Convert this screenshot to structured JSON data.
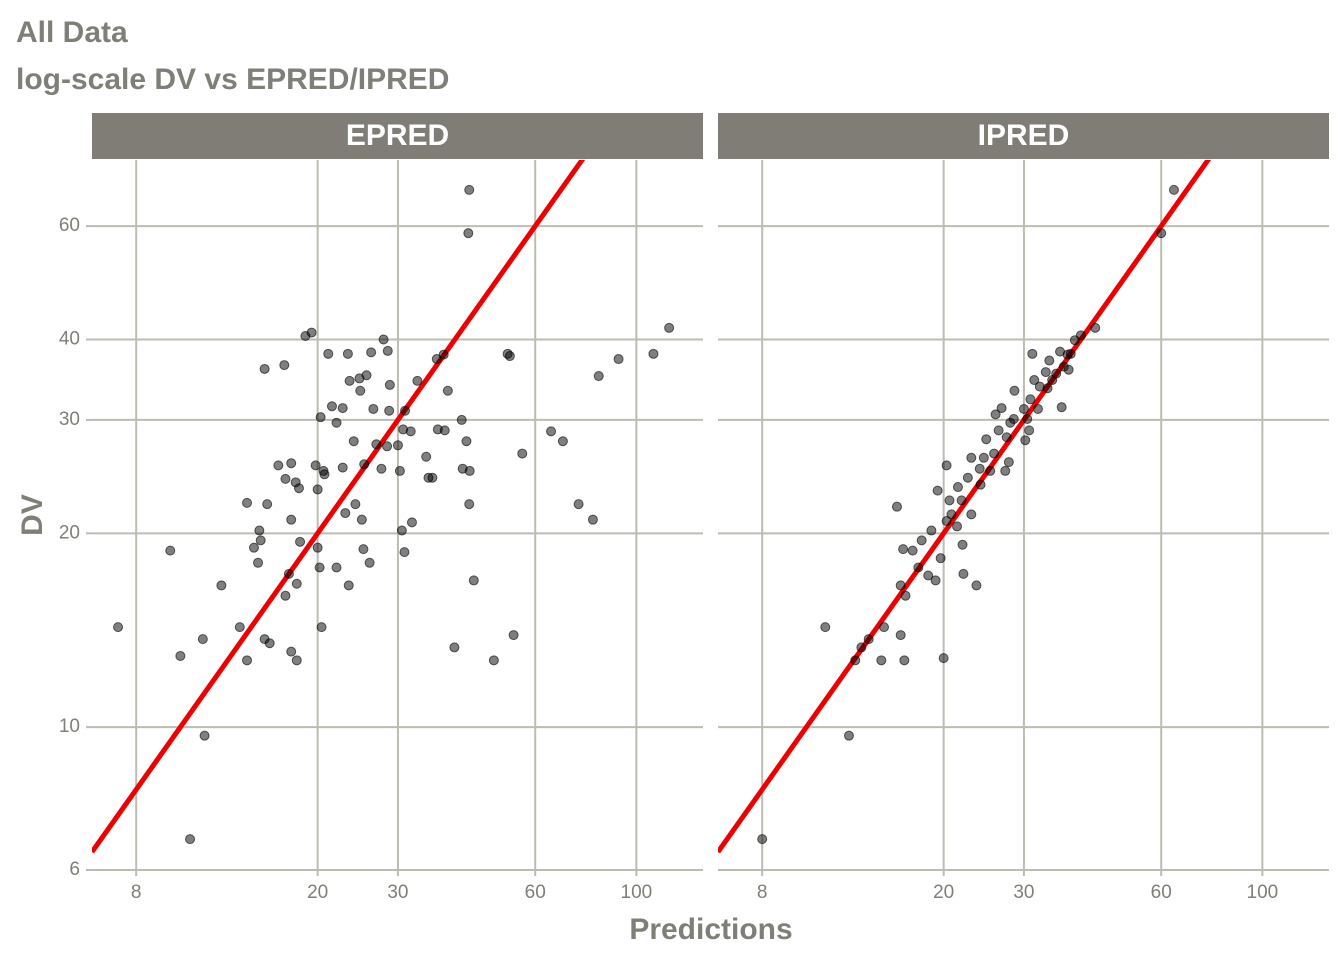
{
  "chart_data": {
    "type": "scatter",
    "title": "All Data",
    "subtitle": "log-scale DV vs EPRED/IPRED",
    "x_label": "Predictions",
    "y_label": "DV",
    "x_log": true,
    "y_log": true,
    "grid": true,
    "xlim": [
      6.4,
      140
    ],
    "ylim": [
      6,
      76
    ],
    "xticks": [
      8,
      20,
      30,
      60,
      100
    ],
    "yticks": [
      6,
      10,
      20,
      30,
      40,
      60
    ],
    "point_color": "#000000",
    "identity_line_color": "#ee0000",
    "panels": [
      {
        "name": "EPRED",
        "x": [
          7.3,
          9.5,
          10,
          10.5,
          11.2,
          11.3,
          12.3,
          13.5,
          14,
          14,
          14.5,
          14.9,
          15,
          14.8,
          15.3,
          15.5,
          15.3,
          15.7,
          16.4,
          16.9,
          17,
          17,
          17.3,
          17.5,
          17.5,
          17.5,
          18,
          18,
          18.2,
          18.3,
          17.9,
          18.8,
          19.4,
          19.8,
          20,
          20,
          20.2,
          20.4,
          20.3,
          20.6,
          20.7,
          21.1,
          21.5,
          22,
          22,
          22.7,
          23,
          22.7,
          23.3,
          23.5,
          23.4,
          24,
          24.2,
          24.7,
          24.8,
          25,
          25.2,
          25.3,
          25.6,
          26,
          26.2,
          26.5,
          26.9,
          27.6,
          27.9,
          28.4,
          28.5,
          28.8,
          28.7,
          30,
          30.3,
          30.6,
          31,
          30.8,
          31.1,
          32,
          32.2,
          33.1,
          34.6,
          35,
          35.7,
          36.5,
          36.7,
          37.8,
          38,
          38.6,
          39.9,
          41.4,
          41.6,
          42.4,
          43,
          42.8,
          43,
          43.1,
          44,
          48.7,
          52.2,
          52.8,
          53.8,
          56.2,
          65,
          69,
          74.7,
          80.3,
          82.7,
          91.4,
          109,
          118
        ],
        "y": [
          14.3,
          18.8,
          12.9,
          6.7,
          13.7,
          9.7,
          16.6,
          14.3,
          12.7,
          22.3,
          19,
          20.2,
          19.5,
          18,
          36,
          22.2,
          13.7,
          13.5,
          25.5,
          36.5,
          24.3,
          16,
          17.3,
          21,
          25.7,
          13.1,
          12.7,
          16.7,
          23.5,
          19.4,
          24,
          40.5,
          41,
          25.5,
          23.4,
          19,
          17.7,
          14.3,
          30.3,
          25,
          24.7,
          38,
          31.5,
          29.7,
          17.7,
          25.3,
          21.5,
          31.3,
          38,
          34.5,
          16.6,
          27.8,
          22.2,
          34.8,
          33.3,
          21,
          18.9,
          25.6,
          35.2,
          18,
          38.2,
          31.2,
          27.5,
          25.2,
          40,
          27.3,
          38.4,
          34,
          31,
          27.4,
          25,
          20.2,
          18.7,
          29,
          31,
          28.8,
          20.8,
          34.5,
          26.3,
          24.4,
          24.4,
          37.3,
          29,
          37.9,
          28.9,
          33.3,
          13.3,
          30,
          25.2,
          27.8,
          68.3,
          58.5,
          22.2,
          25,
          16.9,
          12.7,
          38,
          37.7,
          13.9,
          26.6,
          28.8,
          27.8,
          22.2,
          21,
          35.1,
          37.3,
          38,
          41.7
        ]
      },
      {
        "name": "IPRED",
        "x": [
          8,
          11,
          12.4,
          12.8,
          13.2,
          13.7,
          14.6,
          14.8,
          15.8,
          16.1,
          16.4,
          16.1,
          16.5,
          16.3,
          17.1,
          17.6,
          17.9,
          18.5,
          18.8,
          19.4,
          19.2,
          19.7,
          20,
          20.3,
          20.3,
          20.6,
          20.8,
          21.4,
          21.5,
          22,
          22.1,
          21.9,
          22.6,
          23,
          23,
          23.6,
          24,
          24.1,
          24.5,
          24.8,
          25.3,
          25.8,
          26,
          26.4,
          26.8,
          27.3,
          27.5,
          27.8,
          28,
          28.5,
          28.6,
          30,
          30.2,
          30.5,
          30.8,
          31,
          31.3,
          31.6,
          32.2,
          32.5,
          33.5,
          33.8,
          34.1,
          34.6,
          35.3,
          36,
          36.3,
          36.7,
          37.4,
          38,
          38.8,
          37.6,
          40,
          43,
          60,
          64
        ],
        "y": [
          6.7,
          14.3,
          9.7,
          12.7,
          13.3,
          13.7,
          12.7,
          14.3,
          22,
          13.9,
          12.7,
          16.6,
          16,
          18.9,
          18.8,
          17.7,
          19.5,
          17.2,
          20.2,
          23.3,
          16.9,
          18.3,
          12.8,
          25.5,
          20.9,
          22.5,
          21.4,
          20.5,
          23.6,
          19.2,
          17.3,
          22.5,
          24.4,
          26.2,
          21.4,
          16.6,
          25.2,
          23.8,
          26.2,
          28,
          25,
          26.6,
          30.6,
          28.9,
          31.3,
          25,
          28.2,
          25.8,
          29.7,
          30.1,
          33.3,
          31.2,
          27.9,
          30.1,
          28.9,
          32.3,
          38,
          34.6,
          31.2,
          33.8,
          35.6,
          33.6,
          37.1,
          34.6,
          35.4,
          38.3,
          31.4,
          36.3,
          37.9,
          38,
          39.9,
          35.9,
          40.6,
          41.7,
          58.5,
          68.3
        ]
      }
    ]
  }
}
